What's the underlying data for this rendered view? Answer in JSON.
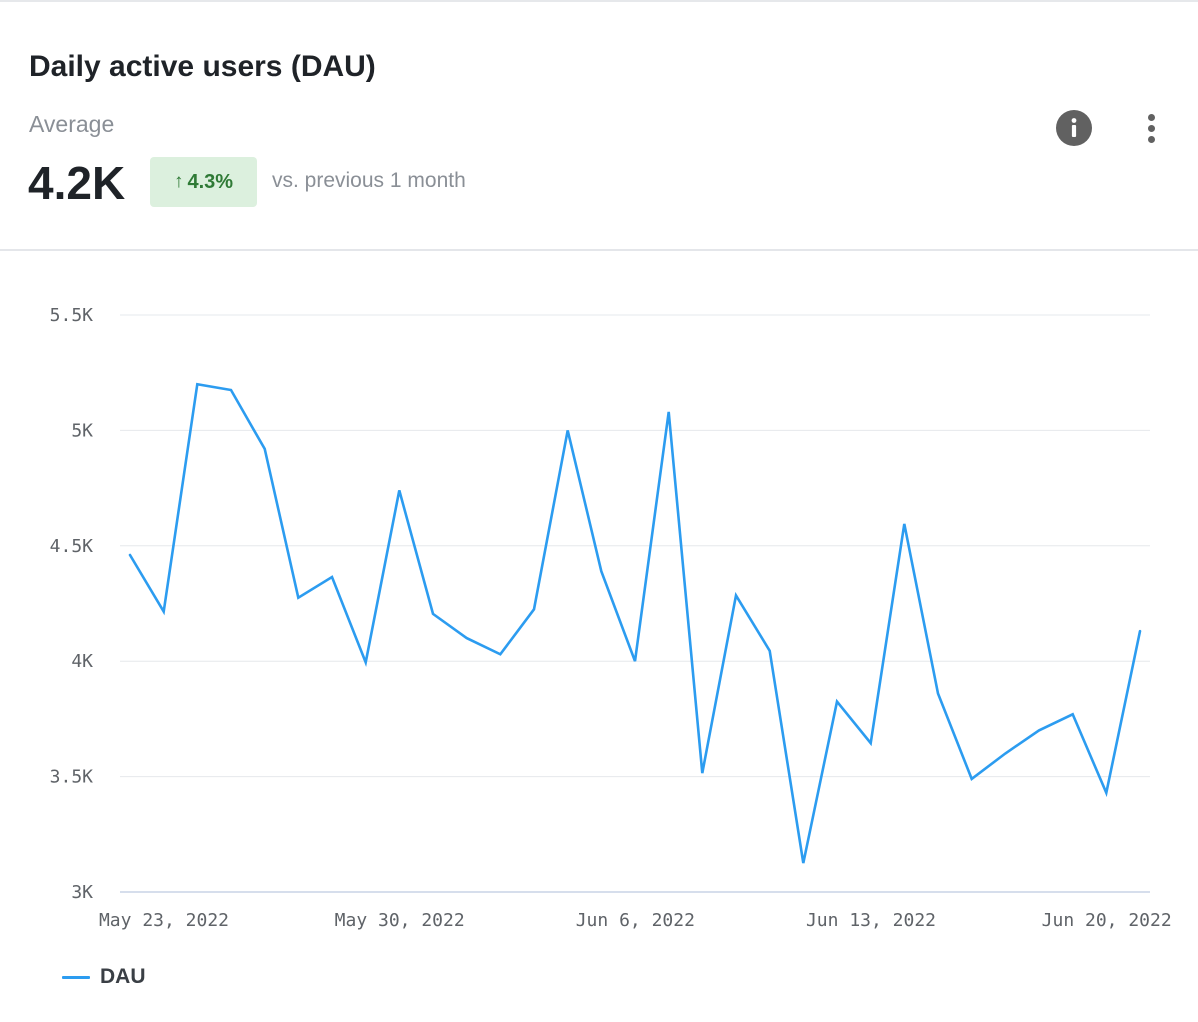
{
  "header": {
    "title": "Daily active users (DAU)",
    "subtitle": "Average",
    "metric": "4.2K",
    "change_badge": "4.3%",
    "comparison": "vs. previous 1 month"
  },
  "icons": {
    "info": "info-icon",
    "more": "more-vertical-icon",
    "change_arrow": "arrow-up-icon"
  },
  "colors": {
    "series": "#2c9cf0",
    "badge_bg": "#dcf0de",
    "badge_text": "#2f7a36"
  },
  "chart_data": {
    "type": "line",
    "title": "",
    "xlabel": "",
    "ylabel": "",
    "ylim": [
      3000,
      5500
    ],
    "y_ticks": [
      3000,
      3500,
      4000,
      4500,
      5000,
      5500
    ],
    "y_tick_labels": [
      "3K",
      "3.5K",
      "4K",
      "4.5K",
      "5K",
      "5.5K"
    ],
    "x": [
      "2022-05-23",
      "2022-05-24",
      "2022-05-25",
      "2022-05-26",
      "2022-05-27",
      "2022-05-28",
      "2022-05-29",
      "2022-05-30",
      "2022-05-31",
      "2022-06-01",
      "2022-06-02",
      "2022-06-03",
      "2022-06-04",
      "2022-06-05",
      "2022-06-06",
      "2022-06-07",
      "2022-06-08",
      "2022-06-09",
      "2022-06-10",
      "2022-06-11",
      "2022-06-12",
      "2022-06-13",
      "2022-06-14",
      "2022-06-15",
      "2022-06-16",
      "2022-06-17",
      "2022-06-18",
      "2022-06-19",
      "2022-06-20",
      "2022-06-21",
      "2022-06-22"
    ],
    "x_ticks": [
      "2022-05-23",
      "2022-05-30",
      "2022-06-06",
      "2022-06-13",
      "2022-06-20"
    ],
    "x_tick_labels": [
      "May 23, 2022",
      "May 30, 2022",
      "Jun 6, 2022",
      "Jun 13, 2022",
      "Jun 20, 2022"
    ],
    "grid": true,
    "legend_position": "bottom-left",
    "series": [
      {
        "name": "DAU",
        "values": [
          4460,
          4215,
          5200,
          5175,
          4920,
          4275,
          4365,
          3995,
          4740,
          4205,
          4100,
          4030,
          4225,
          5000,
          4390,
          4000,
          5080,
          3515,
          4285,
          4045,
          3125,
          3825,
          3645,
          4595,
          3860,
          3490,
          3600,
          3700,
          3770,
          3430,
          4130
        ]
      }
    ]
  },
  "legend": {
    "items": [
      "DAU"
    ]
  }
}
